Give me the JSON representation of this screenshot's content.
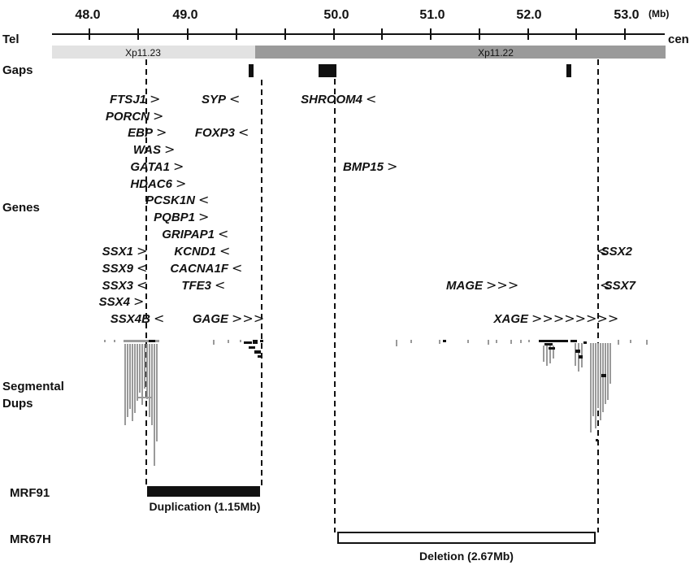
{
  "axis": {
    "ticks": [
      "48.0",
      "49.0",
      "50.0",
      "51.0",
      "52.0",
      "53.0"
    ],
    "unit": "(Mb)",
    "left_label": "Tel",
    "right_label": "cen"
  },
  "bands": [
    {
      "label": "Xp11.23",
      "color": "#e2e2e2"
    },
    {
      "label": "Xp11.22",
      "color": "#9a9a9a"
    }
  ],
  "tracks": {
    "gaps": "Gaps",
    "genes": "Genes",
    "segdups_line1": "Segmental",
    "segdups_line2": "Dups"
  },
  "genes": [
    {
      "name": "FTSJ1",
      "arrow": ">"
    },
    {
      "name": "PORCN",
      "arrow": ">"
    },
    {
      "name": "EBP",
      "arrow": ">"
    },
    {
      "name": "WAS",
      "arrow": ">"
    },
    {
      "name": "GATA1",
      "arrow": ">"
    },
    {
      "name": "HDAC6",
      "arrow": ">"
    },
    {
      "name": "PCSK1N",
      "arrow": "<"
    },
    {
      "name": "PQBP1",
      "arrow": ">"
    },
    {
      "name": "GRIPAP1",
      "arrow": "<"
    },
    {
      "name": "SSX1",
      "arrow": ">"
    },
    {
      "name": "KCND1",
      "arrow": "<"
    },
    {
      "name": "SSX9",
      "arrow": "<"
    },
    {
      "name": "CACNA1F",
      "arrow": "<"
    },
    {
      "name": "SSX3",
      "arrow": "<"
    },
    {
      "name": "TFE3",
      "arrow": "<"
    },
    {
      "name": "SSX4",
      "arrow": ">"
    },
    {
      "name": "SSX4B",
      "arrow": "<"
    },
    {
      "name": "GAGE",
      "arrow": ">>>"
    },
    {
      "name": "SYP",
      "arrow": "<"
    },
    {
      "name": "FOXP3",
      "arrow": "<"
    },
    {
      "name": "SHROOM4",
      "arrow": "<"
    },
    {
      "name": "BMP15",
      "arrow": ">"
    },
    {
      "name": "MAGE",
      "arrow": ">>>"
    },
    {
      "name": "XAGE",
      "arrow": ">>>>>>>>"
    },
    {
      "name": "SSX2",
      "arrow": "<"
    },
    {
      "name": "SSX7",
      "arrow": "<"
    }
  ],
  "samples": [
    {
      "id": "MRF91",
      "caption": "Duplication (1.15Mb)",
      "type": "duplication",
      "start": 48.07,
      "end": 49.22
    },
    {
      "id": "MR67H",
      "caption": "Deletion (2.67Mb)",
      "type": "deletion",
      "start": 50.0,
      "end": 52.67
    }
  ]
}
